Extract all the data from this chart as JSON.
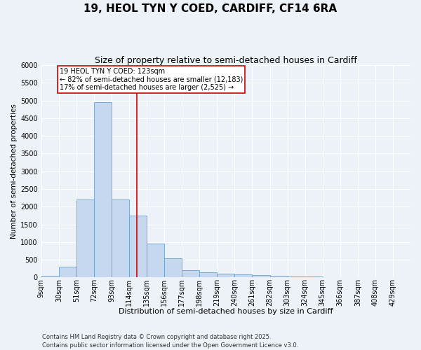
{
  "title": "19, HEOL TYN Y COED, CARDIFF, CF14 6RA",
  "subtitle": "Size of property relative to semi-detached houses in Cardiff",
  "xlabel": "Distribution of semi-detached houses by size in Cardiff",
  "ylabel": "Number of semi-detached properties",
  "bin_labels": [
    "9sqm",
    "30sqm",
    "51sqm",
    "72sqm",
    "93sqm",
    "114sqm",
    "135sqm",
    "156sqm",
    "177sqm",
    "198sqm",
    "219sqm",
    "240sqm",
    "261sqm",
    "282sqm",
    "303sqm",
    "324sqm",
    "345sqm",
    "366sqm",
    "387sqm",
    "408sqm",
    "429sqm"
  ],
  "bin_edges": [
    9,
    30,
    51,
    72,
    93,
    114,
    135,
    156,
    177,
    198,
    219,
    240,
    261,
    282,
    303,
    324,
    345,
    366,
    387,
    408,
    429
  ],
  "bar_heights": [
    50,
    300,
    2200,
    4950,
    2200,
    1750,
    950,
    550,
    200,
    150,
    100,
    80,
    60,
    50,
    30,
    20,
    10,
    5,
    3,
    2,
    0
  ],
  "bar_color": "#c5d8f0",
  "bar_edge_color": "#6aa0cc",
  "property_size": 123,
  "red_line_color": "#cc0000",
  "annotation_line1": "19 HEOL TYN Y COED: 123sqm",
  "annotation_line2": "← 82% of semi-detached houses are smaller (12,183)",
  "annotation_line3": "17% of semi-detached houses are larger (2,525) →",
  "annotation_box_color": "#ffffff",
  "annotation_box_edge": "#cc0000",
  "ylim": [
    0,
    6000
  ],
  "yticks": [
    0,
    500,
    1000,
    1500,
    2000,
    2500,
    3000,
    3500,
    4000,
    4500,
    5000,
    5500,
    6000
  ],
  "background_color": "#edf2f9",
  "grid_color": "#ffffff",
  "footer": "Contains HM Land Registry data © Crown copyright and database right 2025.\nContains public sector information licensed under the Open Government Licence v3.0.",
  "title_fontsize": 11,
  "subtitle_fontsize": 9,
  "xlabel_fontsize": 8,
  "ylabel_fontsize": 7.5,
  "tick_fontsize": 7,
  "annotation_fontsize": 7,
  "footer_fontsize": 6
}
